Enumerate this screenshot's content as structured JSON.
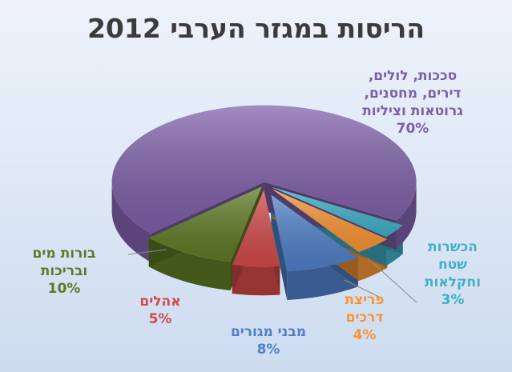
{
  "chart_data": {
    "type": "pie",
    "title": "הריסות במגזר הערבי 2012",
    "slices": [
      {
        "name": "מבני מגורים",
        "lines": [
          "מבני מגורים"
        ],
        "value": 8,
        "value_label": "8%",
        "color": "#4f7fc7"
      },
      {
        "name": "פריצת דרכים",
        "lines": [
          "פריצת",
          "דרכים"
        ],
        "value": 4,
        "value_label": "4%",
        "color": "#f79433"
      },
      {
        "name": "הכשרות שטח וחקלאות",
        "lines": [
          "הכשרות",
          "שטח",
          "וחקלאות"
        ],
        "value": 3,
        "value_label": "3%",
        "color": "#3fb0c8"
      },
      {
        "name": "סככות, לולים, דירים, מחסנים, גרוטאות וציליות",
        "lines": [
          "סככות, לולים,",
          "דירים, מחסנים,",
          "גרוטאות וציליות"
        ],
        "value": 70,
        "value_label": "70%",
        "color": "#7d5fa8"
      },
      {
        "name": "בורות מים ובריכות",
        "lines": [
          "בורות מים",
          "ובריכות"
        ],
        "value": 10,
        "value_label": "10%",
        "color": "#5f7a25"
      },
      {
        "name": "אהלים",
        "lines": [
          "אהלים"
        ],
        "value": 5,
        "value_label": "5%",
        "color": "#d24a4a"
      }
    ],
    "legend": "none",
    "labels": "outside"
  }
}
